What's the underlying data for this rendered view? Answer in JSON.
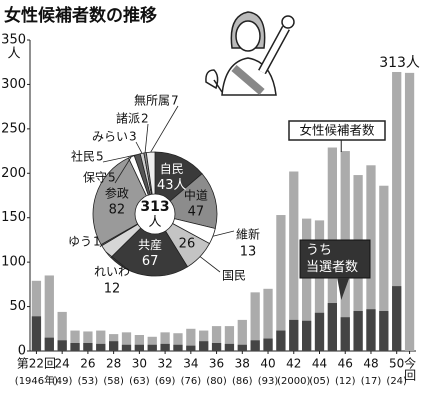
{
  "chart_data": [
    {
      "type": "bar",
      "title": "女性候補者数の推移",
      "overlay": true,
      "y_label": "人",
      "categories": [
        "第22回",
        null,
        "24",
        null,
        "26",
        null,
        "28",
        null,
        "30",
        null,
        "32",
        null,
        "34",
        null,
        "36",
        null,
        "38",
        null,
        "40",
        null,
        "42",
        null,
        "44",
        null,
        "46",
        null,
        "48",
        null,
        "50",
        "今回"
      ],
      "x_sublabels": [
        "(1946年)",
        null,
        "(49)",
        null,
        "(53)",
        null,
        "(58)",
        null,
        "(63)",
        null,
        "(69)",
        null,
        "(76)",
        null,
        "(80)",
        null,
        "(86)",
        null,
        "(93)",
        null,
        "(2000)",
        null,
        "(05)",
        null,
        "(12)",
        null,
        "(17)",
        null,
        "(24)",
        null
      ],
      "series": [
        {
          "name": "女性候補者数",
          "color": "#ababab",
          "values": [
            79,
            85,
            44,
            23,
            22,
            23,
            19,
            21,
            18,
            16,
            21,
            20,
            25,
            23,
            28,
            28,
            35,
            66,
            70,
            153,
            202,
            149,
            147,
            229,
            225,
            198,
            209,
            186,
            314,
            313
          ],
          "value_labels": [
            null,
            null,
            null,
            null,
            null,
            null,
            null,
            null,
            null,
            null,
            null,
            null,
            null,
            null,
            null,
            null,
            null,
            null,
            null,
            null,
            null,
            null,
            null,
            null,
            null,
            null,
            null,
            null,
            null,
            "313人"
          ]
        },
        {
          "name": "うち当選者数",
          "color": "#444444",
          "values": [
            39,
            15,
            12,
            9,
            9,
            8,
            11,
            7,
            7,
            7,
            8,
            7,
            6,
            11,
            9,
            8,
            7,
            12,
            14,
            23,
            35,
            34,
            43,
            54,
            38,
            45,
            47,
            45,
            73,
            null
          ]
        }
      ],
      "ylim": [
        0,
        350
      ],
      "yticks": [
        0,
        50,
        100,
        150,
        200,
        250,
        300,
        350
      ],
      "grid": false
    },
    {
      "type": "pie",
      "total_label": "313人",
      "categories": [
        "自民",
        "中道",
        "維新",
        "国民",
        "共産",
        "れいわ",
        "ゆう",
        "参政",
        "保守",
        "社民",
        "みらい",
        "諸派",
        "無所属"
      ],
      "values": [
        43,
        47,
        13,
        26,
        67,
        12,
        1,
        82,
        5,
        5,
        3,
        2,
        7
      ],
      "value_labels": [
        "43人",
        "47",
        "13",
        "26",
        "67",
        "12",
        "1",
        "82",
        "5",
        "5",
        "3",
        "2",
        "7"
      ],
      "colors": [
        "#3a3a3a",
        "#8c8c8c",
        "#ffffff",
        "#c4c4c4",
        "#3a3a3a",
        "#d6d6d6",
        "#777777",
        "#9a9a9a",
        "#ffffff",
        "#555555",
        "#cfcfcf",
        "#888888",
        "#eeeeee"
      ]
    }
  ]
}
